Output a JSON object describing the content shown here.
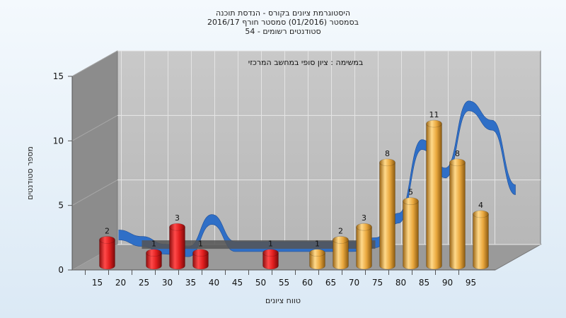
{
  "chart_data": {
    "type": "bar",
    "title_lines": [
      "היסטוגרמת ציונים בקורס - הנדסת תוכנה",
      "בסמסטר  (01/2016)  סמסטר חורף 2016/17",
      "סטודנטים רשומים - 54"
    ],
    "annotation": "במשימה : ציון סופי במחשב המרכזי",
    "xlabel": "טווח ציונים",
    "ylabel": "מספר סטודנטים",
    "x_ticks": [
      "15",
      "20",
      "25",
      "30",
      "35",
      "40",
      "45",
      "50",
      "55",
      "60",
      "65",
      "70",
      "75",
      "80",
      "85",
      "90",
      "95"
    ],
    "y_ticks": [
      "0",
      "5",
      "10",
      "15"
    ],
    "ylim": [
      0,
      15
    ],
    "grid": true,
    "bars": [
      {
        "x": 15,
        "value": 2,
        "label": "2",
        "color": "#d91c1c"
      },
      {
        "x": 25,
        "value": 1,
        "label": "1",
        "color": "#d91c1c"
      },
      {
        "x": 30,
        "value": 3,
        "label": "3",
        "color": "#d91c1c"
      },
      {
        "x": 35,
        "value": 1,
        "label": "1",
        "color": "#d91c1c"
      },
      {
        "x": 50,
        "value": 1,
        "label": "1",
        "color": "#d91c1c"
      },
      {
        "x": 60,
        "value": 1,
        "label": "1",
        "color": "#e8a63a"
      },
      {
        "x": 65,
        "value": 2,
        "label": "2",
        "color": "#e8a63a"
      },
      {
        "x": 70,
        "value": 3,
        "label": "3",
        "color": "#e8a63a"
      },
      {
        "x": 75,
        "value": 8,
        "label": "8",
        "color": "#e8a63a"
      },
      {
        "x": 80,
        "value": 5,
        "label": "5",
        "color": "#e8a63a"
      },
      {
        "x": 85,
        "value": 11,
        "label": "11",
        "color": "#e8a63a"
      },
      {
        "x": 90,
        "value": 8,
        "label": "8",
        "color": "#e8a63a"
      },
      {
        "x": 95,
        "value": 4,
        "label": "4",
        "color": "#e8a63a"
      }
    ],
    "curve": {
      "x": [
        15,
        20,
        25,
        30,
        35,
        40,
        45,
        50,
        55,
        60,
        65,
        70,
        75,
        80,
        85,
        90,
        95,
        100
      ],
      "y": [
        2.0,
        1.5,
        0.9,
        0.7,
        3.2,
        1.1,
        1.1,
        1.1,
        1.1,
        1.1,
        1.1,
        1.4,
        3.3,
        9.0,
        6.8,
        12.0,
        10.5,
        5.5
      ],
      "color": "#2f6fc7",
      "flat_color": "#555555"
    }
  }
}
